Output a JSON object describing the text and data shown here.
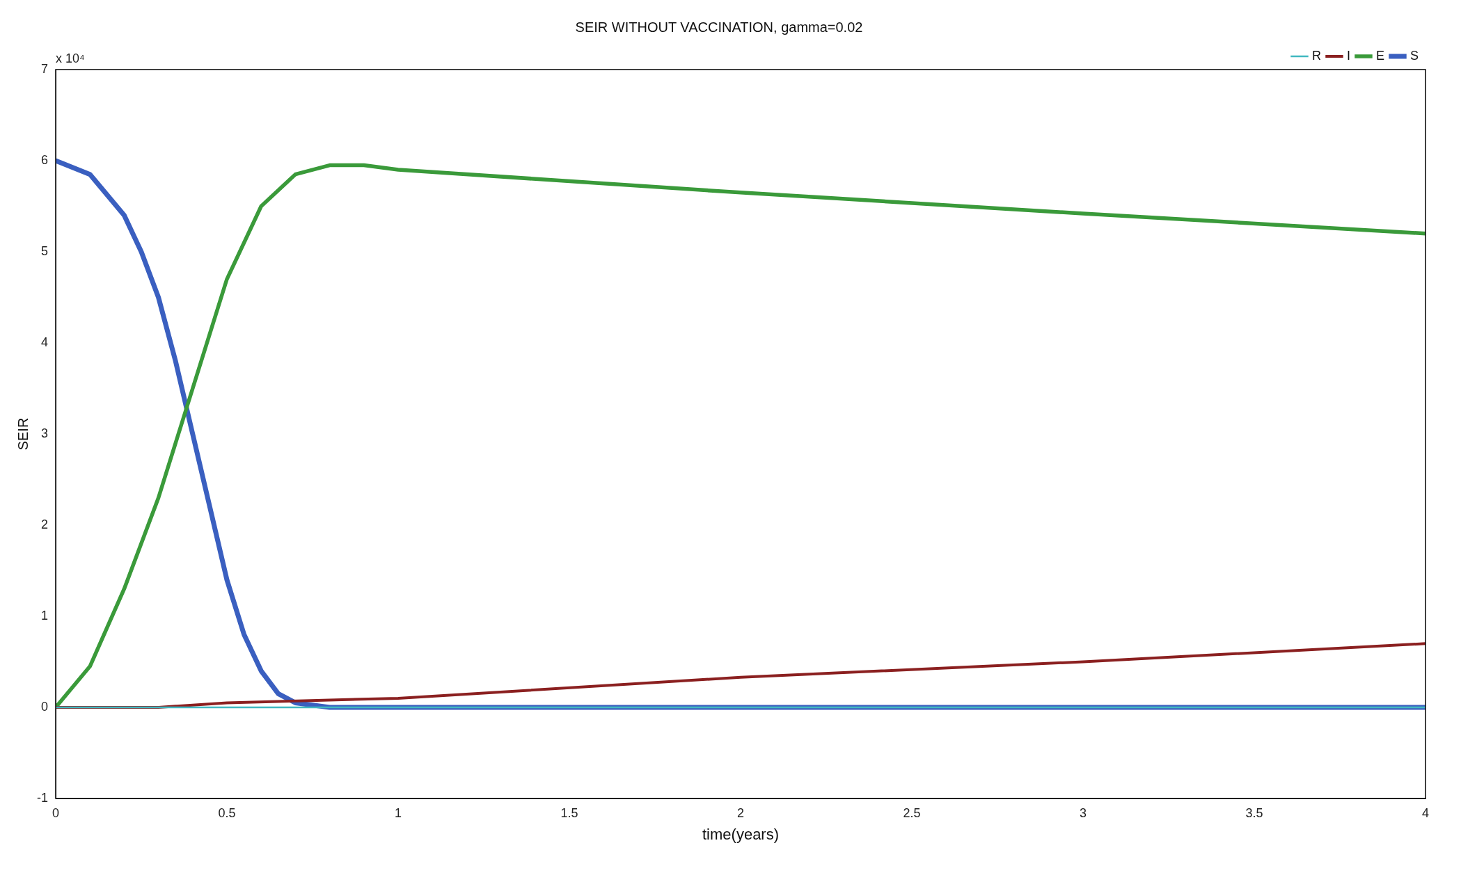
{
  "chart_data": {
    "type": "line",
    "title": "SEIR WITHOUT VACCINATION, gamma=0.02",
    "xlabel": "time(years)",
    "ylabel": "SEIR",
    "annotations": [
      "x 10⁴"
    ],
    "xlim": [
      0,
      4
    ],
    "xticks": [
      0,
      0.5,
      1,
      1.5,
      2,
      2.5,
      3,
      3.5,
      4
    ],
    "ylim": [
      -1,
      7
    ],
    "yticks": [
      -1,
      0,
      1,
      2,
      3,
      4,
      5,
      6,
      7
    ],
    "grid": false,
    "legend": "top right",
    "marker": "none",
    "line_style": "solid",
    "series": [
      {
        "name": "S",
        "color": "#3a5fc0",
        "x": [
          0,
          0.1,
          0.2,
          0.25,
          0.3,
          0.35,
          0.4,
          0.45,
          0.5,
          0.55,
          0.6,
          0.65,
          0.7,
          0.8,
          1,
          2,
          3,
          4
        ],
        "values": [
          6,
          5.85,
          5.4,
          5,
          4.5,
          3.8,
          3,
          2.2,
          1.4,
          0.8,
          0.4,
          0.15,
          0.05,
          0,
          0,
          0,
          0,
          0
        ]
      },
      {
        "name": "E",
        "color": "#3a9a3a",
        "x": [
          0,
          0.1,
          0.2,
          0.3,
          0.4,
          0.5,
          0.6,
          0.7,
          0.8,
          0.9,
          1,
          2,
          3,
          4
        ],
        "values": [
          0,
          0.45,
          1.3,
          2.3,
          3.5,
          4.7,
          5.5,
          5.85,
          5.95,
          5.95,
          5.9,
          5.65,
          5.42,
          5.2
        ]
      },
      {
        "name": "I",
        "color": "#8b2020",
        "x": [
          0,
          0.3,
          0.5,
          1,
          2,
          3,
          4
        ],
        "values": [
          0,
          0,
          0.05,
          0.1,
          0.33,
          0.5,
          0.7
        ]
      },
      {
        "name": "R",
        "color": "#40b8c0",
        "x": [
          0,
          1,
          2,
          3,
          4
        ],
        "values": [
          0,
          0,
          0,
          0,
          0
        ]
      }
    ]
  }
}
